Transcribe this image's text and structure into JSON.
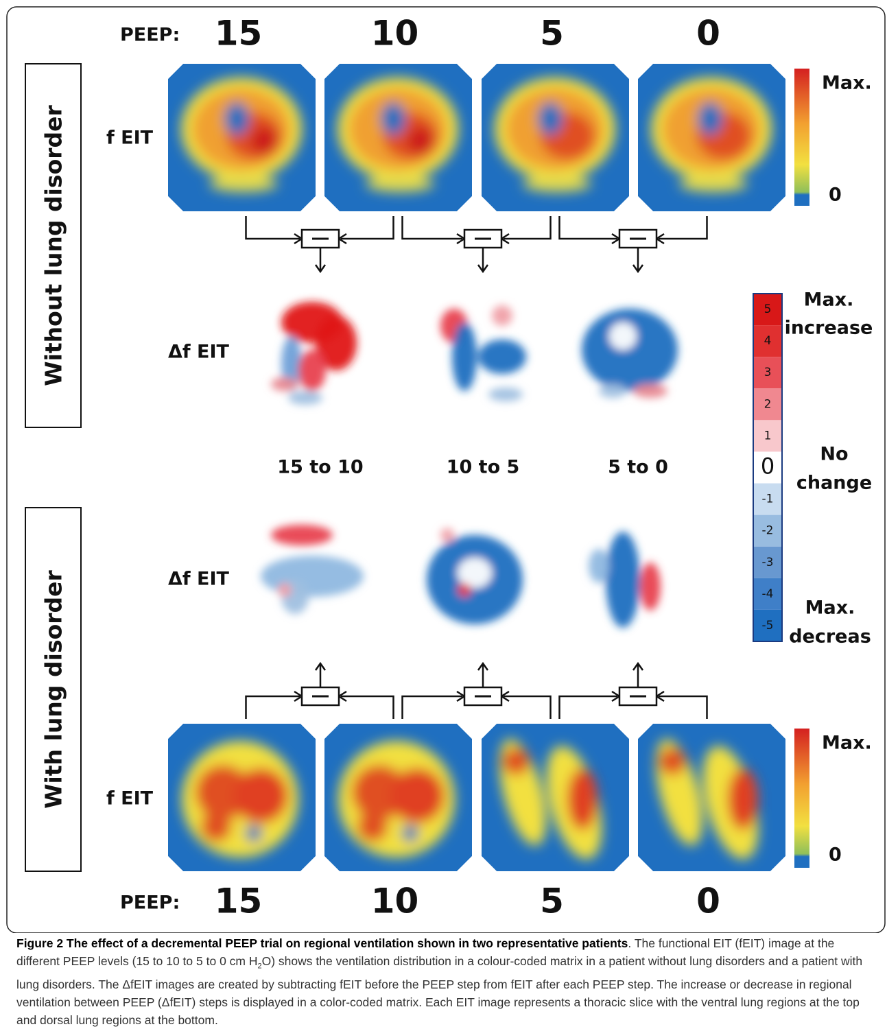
{
  "peep_top": {
    "label": "PEEP:",
    "levels": [
      "15",
      "10",
      "5",
      "0"
    ]
  },
  "peep_bottom": {
    "label": "PEEP:",
    "levels": [
      "15",
      "10",
      "5",
      "0"
    ]
  },
  "groups": [
    "Without lung disorder",
    "With lung disorder"
  ],
  "rows": {
    "top_feit": "f EIT",
    "top_delta": "Δf EIT",
    "bottom_delta": "Δf EIT",
    "bottom_feit": "f EIT"
  },
  "transitions": [
    "15 to 10",
    "10 to 5",
    "5 to 0"
  ],
  "colorbar_top": {
    "max": "Max.",
    "min": "0"
  },
  "colorbar_bottom": {
    "max": "Max.",
    "min": "0"
  },
  "delta_scale": {
    "ticks": [
      5,
      4,
      3,
      2,
      1,
      0,
      -1,
      -2,
      -3,
      -4,
      -5
    ],
    "increase": [
      "Max.",
      "increase"
    ],
    "none": [
      "No",
      "change"
    ],
    "decrease": [
      "Max.",
      "decreas"
    ]
  },
  "caption": {
    "title": "Figure 2 The effect of a decremental PEEP trial on regional ventilation shown in two representative patients",
    "text": [
      ". The functional EIT (fEIT) image at the different PEEP levels (15 to 10 to 5 to 0 cm H",
      "2",
      "O) shows the ventilation distribution in a colour-coded matrix in a patient without lung disorders and a patient with lung disorders. The ΔfEIT images are created by subtracting fEIT before the PEEP step from fEIT after each PEEP step. The increase or decrease in regional ventilation between PEEP (ΔfEIT) steps is displayed in a color-coded matrix. Each EIT image represents a thoracic slice with the ventral lung regions at the top and dorsal lung regions at the bottom."
    ]
  }
}
